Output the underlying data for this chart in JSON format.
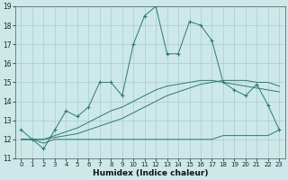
{
  "title": "",
  "xlabel": "Humidex (Indice chaleur)",
  "ylabel": "",
  "xlim": [
    -0.5,
    23.5
  ],
  "ylim": [
    11,
    19
  ],
  "xticks": [
    0,
    1,
    2,
    3,
    4,
    5,
    6,
    7,
    8,
    9,
    10,
    11,
    12,
    13,
    14,
    15,
    16,
    17,
    18,
    19,
    20,
    21,
    22,
    23
  ],
  "yticks": [
    11,
    12,
    13,
    14,
    15,
    16,
    17,
    18,
    19
  ],
  "bg_color": "#cce8e8",
  "grid_color": "#aacccc",
  "line_color": "#2d7a6e",
  "series1_x": [
    0,
    1,
    2,
    3,
    4,
    5,
    6,
    7,
    8,
    9,
    10,
    11,
    12,
    13,
    14,
    15,
    16,
    17,
    18,
    19,
    20,
    21,
    22,
    23
  ],
  "series1_y": [
    12.5,
    12.0,
    11.5,
    12.5,
    13.5,
    13.2,
    13.7,
    15.0,
    15.0,
    14.3,
    17.0,
    18.5,
    19.0,
    16.5,
    16.5,
    18.2,
    18.0,
    17.2,
    15.0,
    14.6,
    14.3,
    14.9,
    13.8,
    12.5
  ],
  "series2_x": [
    0,
    1,
    2,
    3,
    4,
    5,
    6,
    7,
    8,
    9,
    10,
    11,
    12,
    13,
    14,
    15,
    16,
    17,
    18,
    19,
    20,
    21,
    22,
    23
  ],
  "series2_y": [
    12.0,
    12.0,
    11.8,
    12.0,
    12.0,
    12.0,
    12.0,
    12.0,
    12.0,
    12.0,
    12.0,
    12.0,
    12.0,
    12.0,
    12.0,
    12.0,
    12.0,
    12.0,
    12.2,
    12.2,
    12.2,
    12.2,
    12.2,
    12.5
  ],
  "series3_x": [
    0,
    1,
    2,
    3,
    4,
    5,
    6,
    7,
    8,
    9,
    10,
    11,
    12,
    13,
    14,
    15,
    16,
    17,
    18,
    19,
    20,
    21,
    22,
    23
  ],
  "series3_y": [
    12.0,
    12.0,
    12.0,
    12.1,
    12.2,
    12.3,
    12.5,
    12.7,
    12.9,
    13.1,
    13.4,
    13.7,
    14.0,
    14.3,
    14.5,
    14.7,
    14.9,
    15.0,
    15.1,
    15.1,
    15.1,
    15.0,
    15.0,
    14.8
  ],
  "series4_x": [
    0,
    1,
    2,
    3,
    4,
    5,
    6,
    7,
    8,
    9,
    10,
    11,
    12,
    13,
    14,
    15,
    16,
    17,
    18,
    19,
    20,
    21,
    22,
    23
  ],
  "series4_y": [
    12.0,
    12.0,
    12.0,
    12.2,
    12.4,
    12.6,
    12.9,
    13.2,
    13.5,
    13.7,
    14.0,
    14.3,
    14.6,
    14.8,
    14.9,
    15.0,
    15.1,
    15.1,
    15.0,
    14.9,
    14.8,
    14.7,
    14.6,
    14.5
  ]
}
